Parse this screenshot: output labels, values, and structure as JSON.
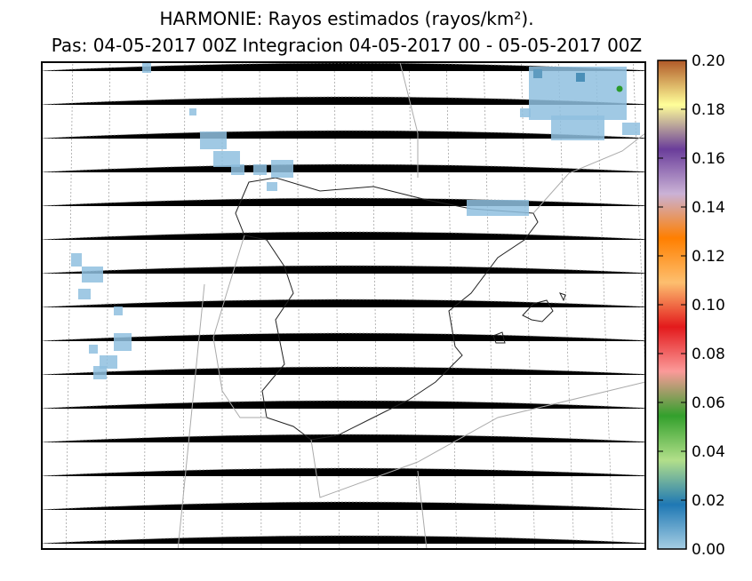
{
  "title": "HARMONIE: Rayos estimados (rayos/km²).",
  "subtitle": "Pas: 04-05-2017 00Z Integracion 04-05-2017 00 - 05-05-2017 00Z",
  "colorbar": {
    "lim": [
      0,
      0.2
    ],
    "ticks": [
      {
        "value": 0,
        "label": "0.00"
      },
      0.02,
      0.04,
      0.06,
      0.08,
      {
        "value": 0.1,
        "label": "0.10"
      },
      0.12,
      0.14,
      0.16,
      0.18,
      {
        "value": 0.2,
        "label": "0.20"
      }
    ],
    "colors": [
      "#a6cee3",
      "#1f78b4",
      "#b2df8a",
      "#33a02c",
      "#fb9a99",
      "#e31a1c",
      "#fdbf6f",
      "#ff7f00",
      "#cab2d6",
      "#6a3d9a",
      "#ffff99",
      "#b15928"
    ]
  }
}
